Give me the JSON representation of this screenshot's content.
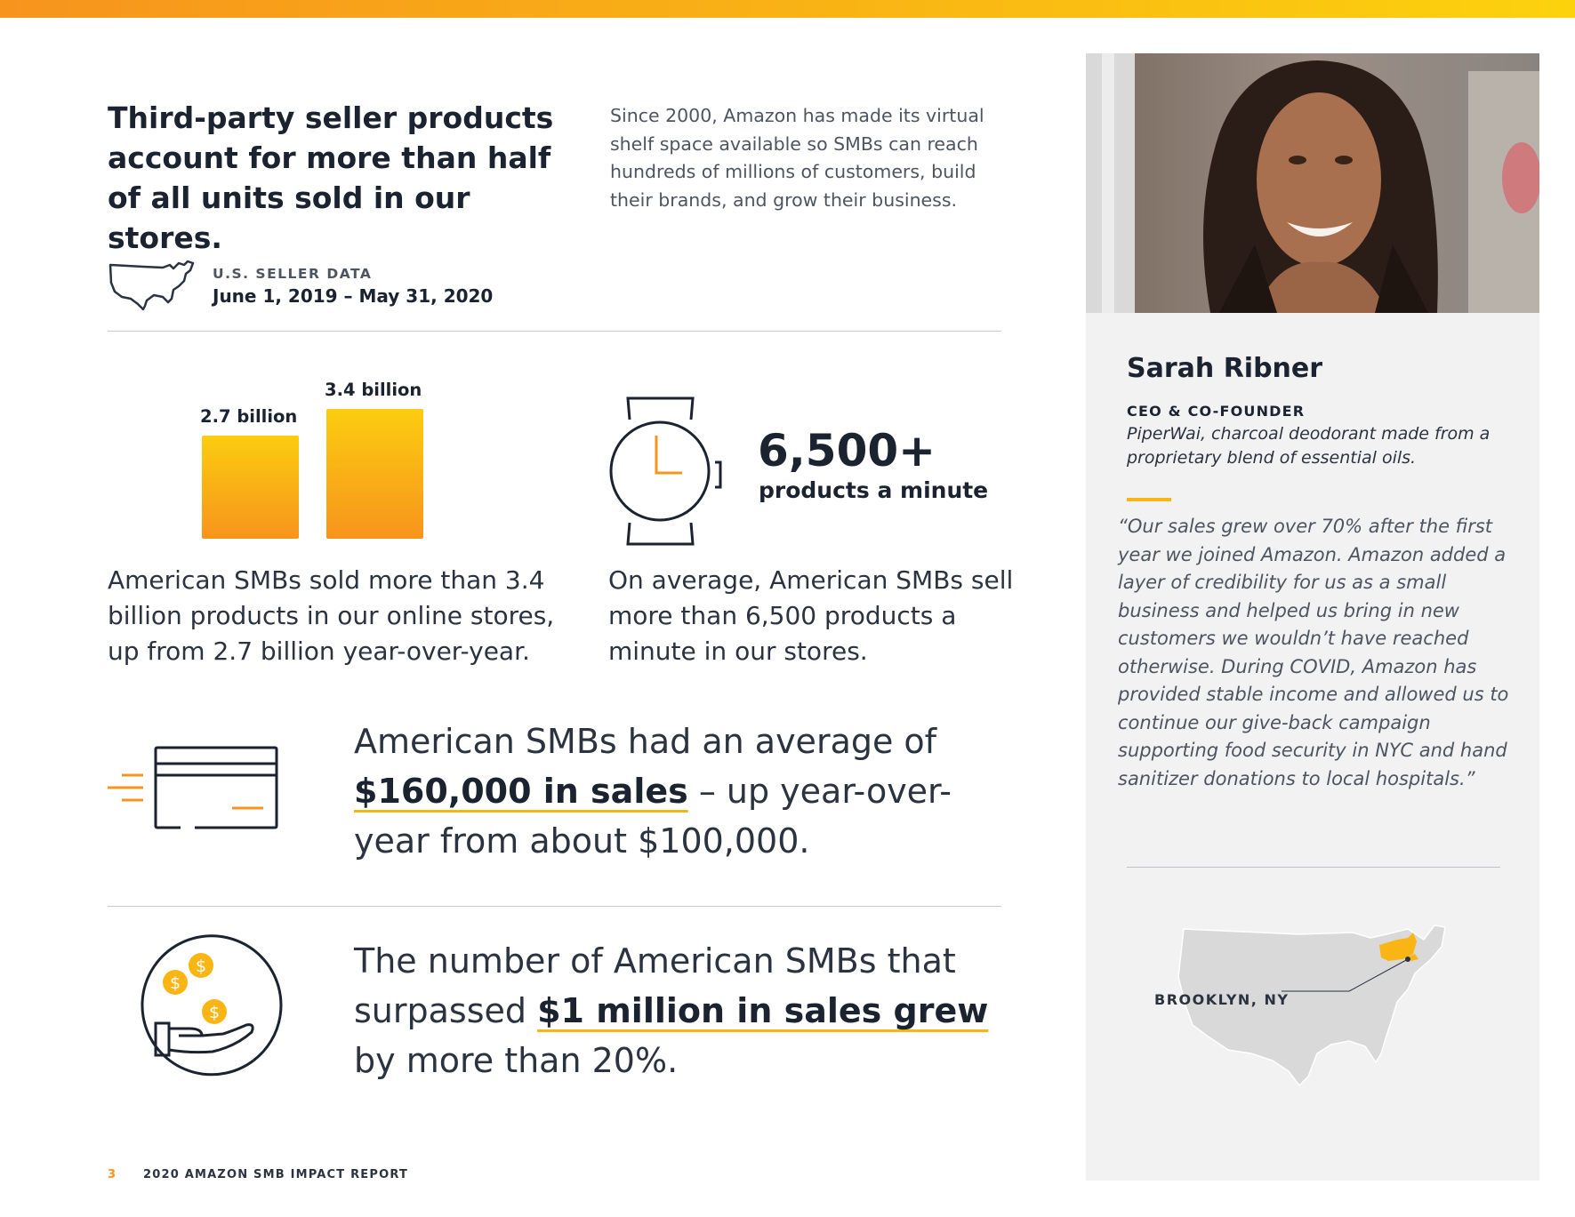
{
  "headline": "Third-party seller products account for more than half of all units sold in our stores.",
  "intro": "Since 2000, Amazon has made its virtual shelf space available so SMBs can reach hundreds of millions of customers, build their brands, and grow their business.",
  "seller_data": {
    "label": "U.S. SELLER DATA",
    "dates": "June 1, 2019 – May 31, 2020",
    "icon": "us-map-outline-icon"
  },
  "units_chart": {
    "bars": [
      {
        "label": "2.7 billion",
        "value": 2.7
      },
      {
        "label": "3.4 billion",
        "value": 3.4
      }
    ],
    "text": "American SMBs sold more than 3.4 billion products in our online stores, up from 2.7 billion year-over-year."
  },
  "per_minute": {
    "icon": "watch-icon",
    "number": "6,500+",
    "unit": "products a minute",
    "text": "On average, American SMBs sell more than 6,500 products a minute in our stores."
  },
  "avg_sales": {
    "icon": "credit-card-icon",
    "before": "American SMBs had an average of ",
    "highlight": "$160,000 in sales",
    "after": " – up year-over-year from about $100,000."
  },
  "million_sales": {
    "icon": "hand-coins-icon",
    "before": "The number of American SMBs that surpassed ",
    "highlight": "$1 million in sales grew",
    "after": " by more than 20%."
  },
  "footer": {
    "page": "3",
    "title": "2020 AMAZON SMB IMPACT REPORT"
  },
  "profile": {
    "name": "Sarah Ribner",
    "role": "CEO & CO-FOUNDER",
    "company": "PiperWai, charcoal deodorant made from a proprietary blend of essential oils.",
    "quote": "“Our sales grew over 70% after the first year we joined Amazon. Amazon added a layer of credibility for us as a small business and helped us bring in new customers we wouldn’t have reached otherwise. During COVID, Amazon has provided stable income and allowed us to continue our give-back campaign supporting food security in NYC and hand sanitizer donations to local hospitals.”",
    "location": "BROOKLYN, NY"
  },
  "colors": {
    "accent": "#f9b514",
    "orange": "#f7941d",
    "text": "#1b2230"
  }
}
